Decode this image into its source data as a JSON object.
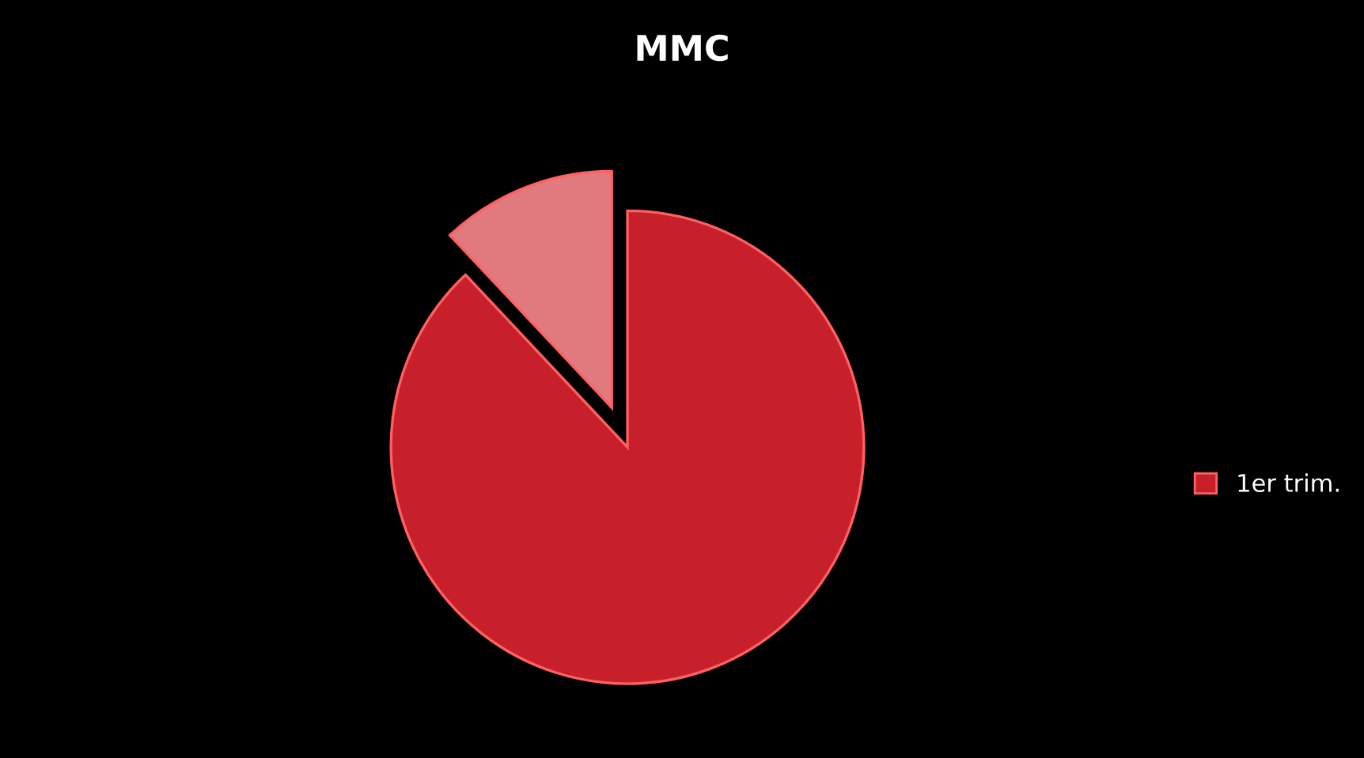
{
  "chart_data": {
    "type": "pie",
    "title": "MMC",
    "categories": [
      "1er trim.",
      null
    ],
    "values": [
      88,
      12
    ],
    "colors": [
      "#c8202a",
      "#e07a7e"
    ],
    "legend": "right"
  }
}
